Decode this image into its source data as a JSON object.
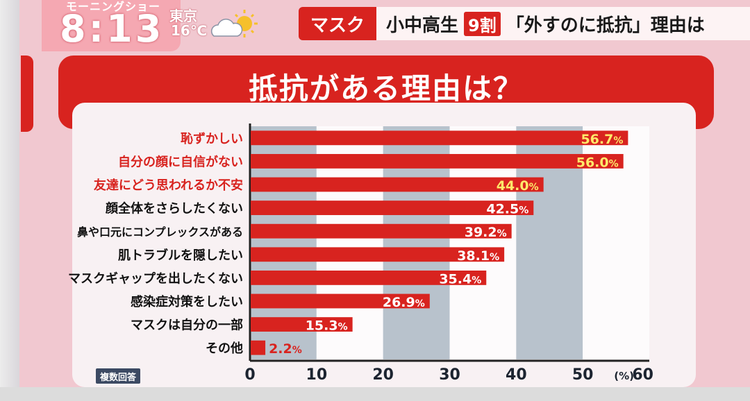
{
  "header": {
    "program_name": "モーニングショー",
    "time": "8:13",
    "weather": {
      "city": "東京",
      "temperature": "16℃",
      "icon": "partly-sunny-icon"
    },
    "topic_badge": "マスク",
    "headline": {
      "part1": "小中高生",
      "badge": "9割",
      "part2": "「外すのに抵抗」理由は"
    }
  },
  "note": "複数回答",
  "colors": {
    "bar": "#d8231f",
    "highlight_label": "#d8231f",
    "normal_label": "#111111"
  },
  "chart_data": {
    "type": "bar",
    "orientation": "horizontal",
    "title": "抵抗がある理由は？",
    "categories": [
      "恥ずかしい",
      "自分の顔に自信がない",
      "友達にどう思われるか不安",
      "顔全体をさらしたくない",
      "鼻や口元にコンプレックスがある",
      "肌トラブルを隠したい",
      "マスクギャップを出したくない",
      "感染症対策をしたい",
      "マスクは自分の一部",
      "その他"
    ],
    "values": [
      56.7,
      56.0,
      44.0,
      42.5,
      39.2,
      38.1,
      35.4,
      26.9,
      15.3,
      2.2
    ],
    "value_labels": [
      "56.7",
      "56.0",
      "44.0",
      "42.5",
      "39.2",
      "38.1",
      "35.4",
      "26.9",
      "15.3",
      "2.2"
    ],
    "value_unit": "%",
    "highlighted_categories": [
      0,
      1,
      2
    ],
    "xlim": [
      0,
      60
    ],
    "xticks": [
      "0",
      "10",
      "20",
      "30",
      "40",
      "50",
      "60"
    ],
    "xunit": "(%)",
    "grid": "alternating-bands"
  }
}
